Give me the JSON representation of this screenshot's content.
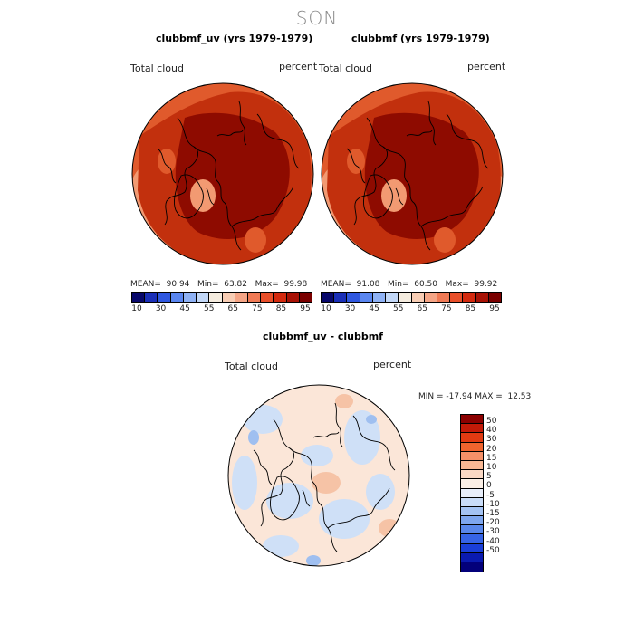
{
  "season": "SON",
  "top_left": {
    "title": "clubbmf_uv (yrs 1979-1979)",
    "var_label": "Total cloud",
    "units": "percent",
    "mean_label": "MEAN=",
    "mean": "90.94",
    "min_label": "Min=",
    "min": "63.82",
    "max_label": "Max=",
    "max": "99.98"
  },
  "top_right": {
    "title": "clubbmf (yrs 1979-1979)",
    "var_label": "Total cloud",
    "units": "percent",
    "mean_label": "MEAN=",
    "mean": "91.08",
    "min_label": "Min=",
    "min": "60.50",
    "max_label": "Max=",
    "max": "99.92"
  },
  "abs_colorbar": {
    "colors": [
      "#08086b",
      "#1a2fb8",
      "#2f57e0",
      "#5a86f0",
      "#8fb2f5",
      "#c3d8f8",
      "#f5ecdf",
      "#f8cdb4",
      "#f5a586",
      "#f07a55",
      "#e84f2a",
      "#d42a0f",
      "#a81205",
      "#7a0000"
    ],
    "ticks": [
      "10",
      "30",
      "45",
      "55",
      "65",
      "75",
      "85",
      "95"
    ]
  },
  "bottom": {
    "title": "clubbmf_uv - clubbmf",
    "var_label": "Total cloud",
    "units": "percent",
    "minmax": "MIN = -17.94 MAX =  12.53"
  },
  "diff_colorbar": {
    "colors": [
      "#8b0000",
      "#c21a08",
      "#e03a12",
      "#f0642e",
      "#f59068",
      "#f8b894",
      "#fad8c4",
      "#fbefe6",
      "#e8eefa",
      "#c9dcf8",
      "#a4c3f3",
      "#7ea6ee",
      "#5987ea",
      "#3664e6",
      "#1a3fd8",
      "#0a1ab0",
      "#03007a"
    ],
    "ticks": [
      "50",
      "40",
      "30",
      "20",
      "15",
      "10",
      "5",
      "0",
      "-5",
      "-10",
      "-15",
      "-20",
      "-30",
      "-40",
      "-50"
    ]
  },
  "map_colors": {
    "deep": "#8e0b00",
    "mid": "#c2300d",
    "light": "#e05a2c",
    "pale": "#f29a72",
    "diff_base": "#fbe6d8",
    "diff_blue": "#cfe0f7",
    "diff_blue2": "#9fbff0",
    "diff_red": "#f6c3a6"
  }
}
